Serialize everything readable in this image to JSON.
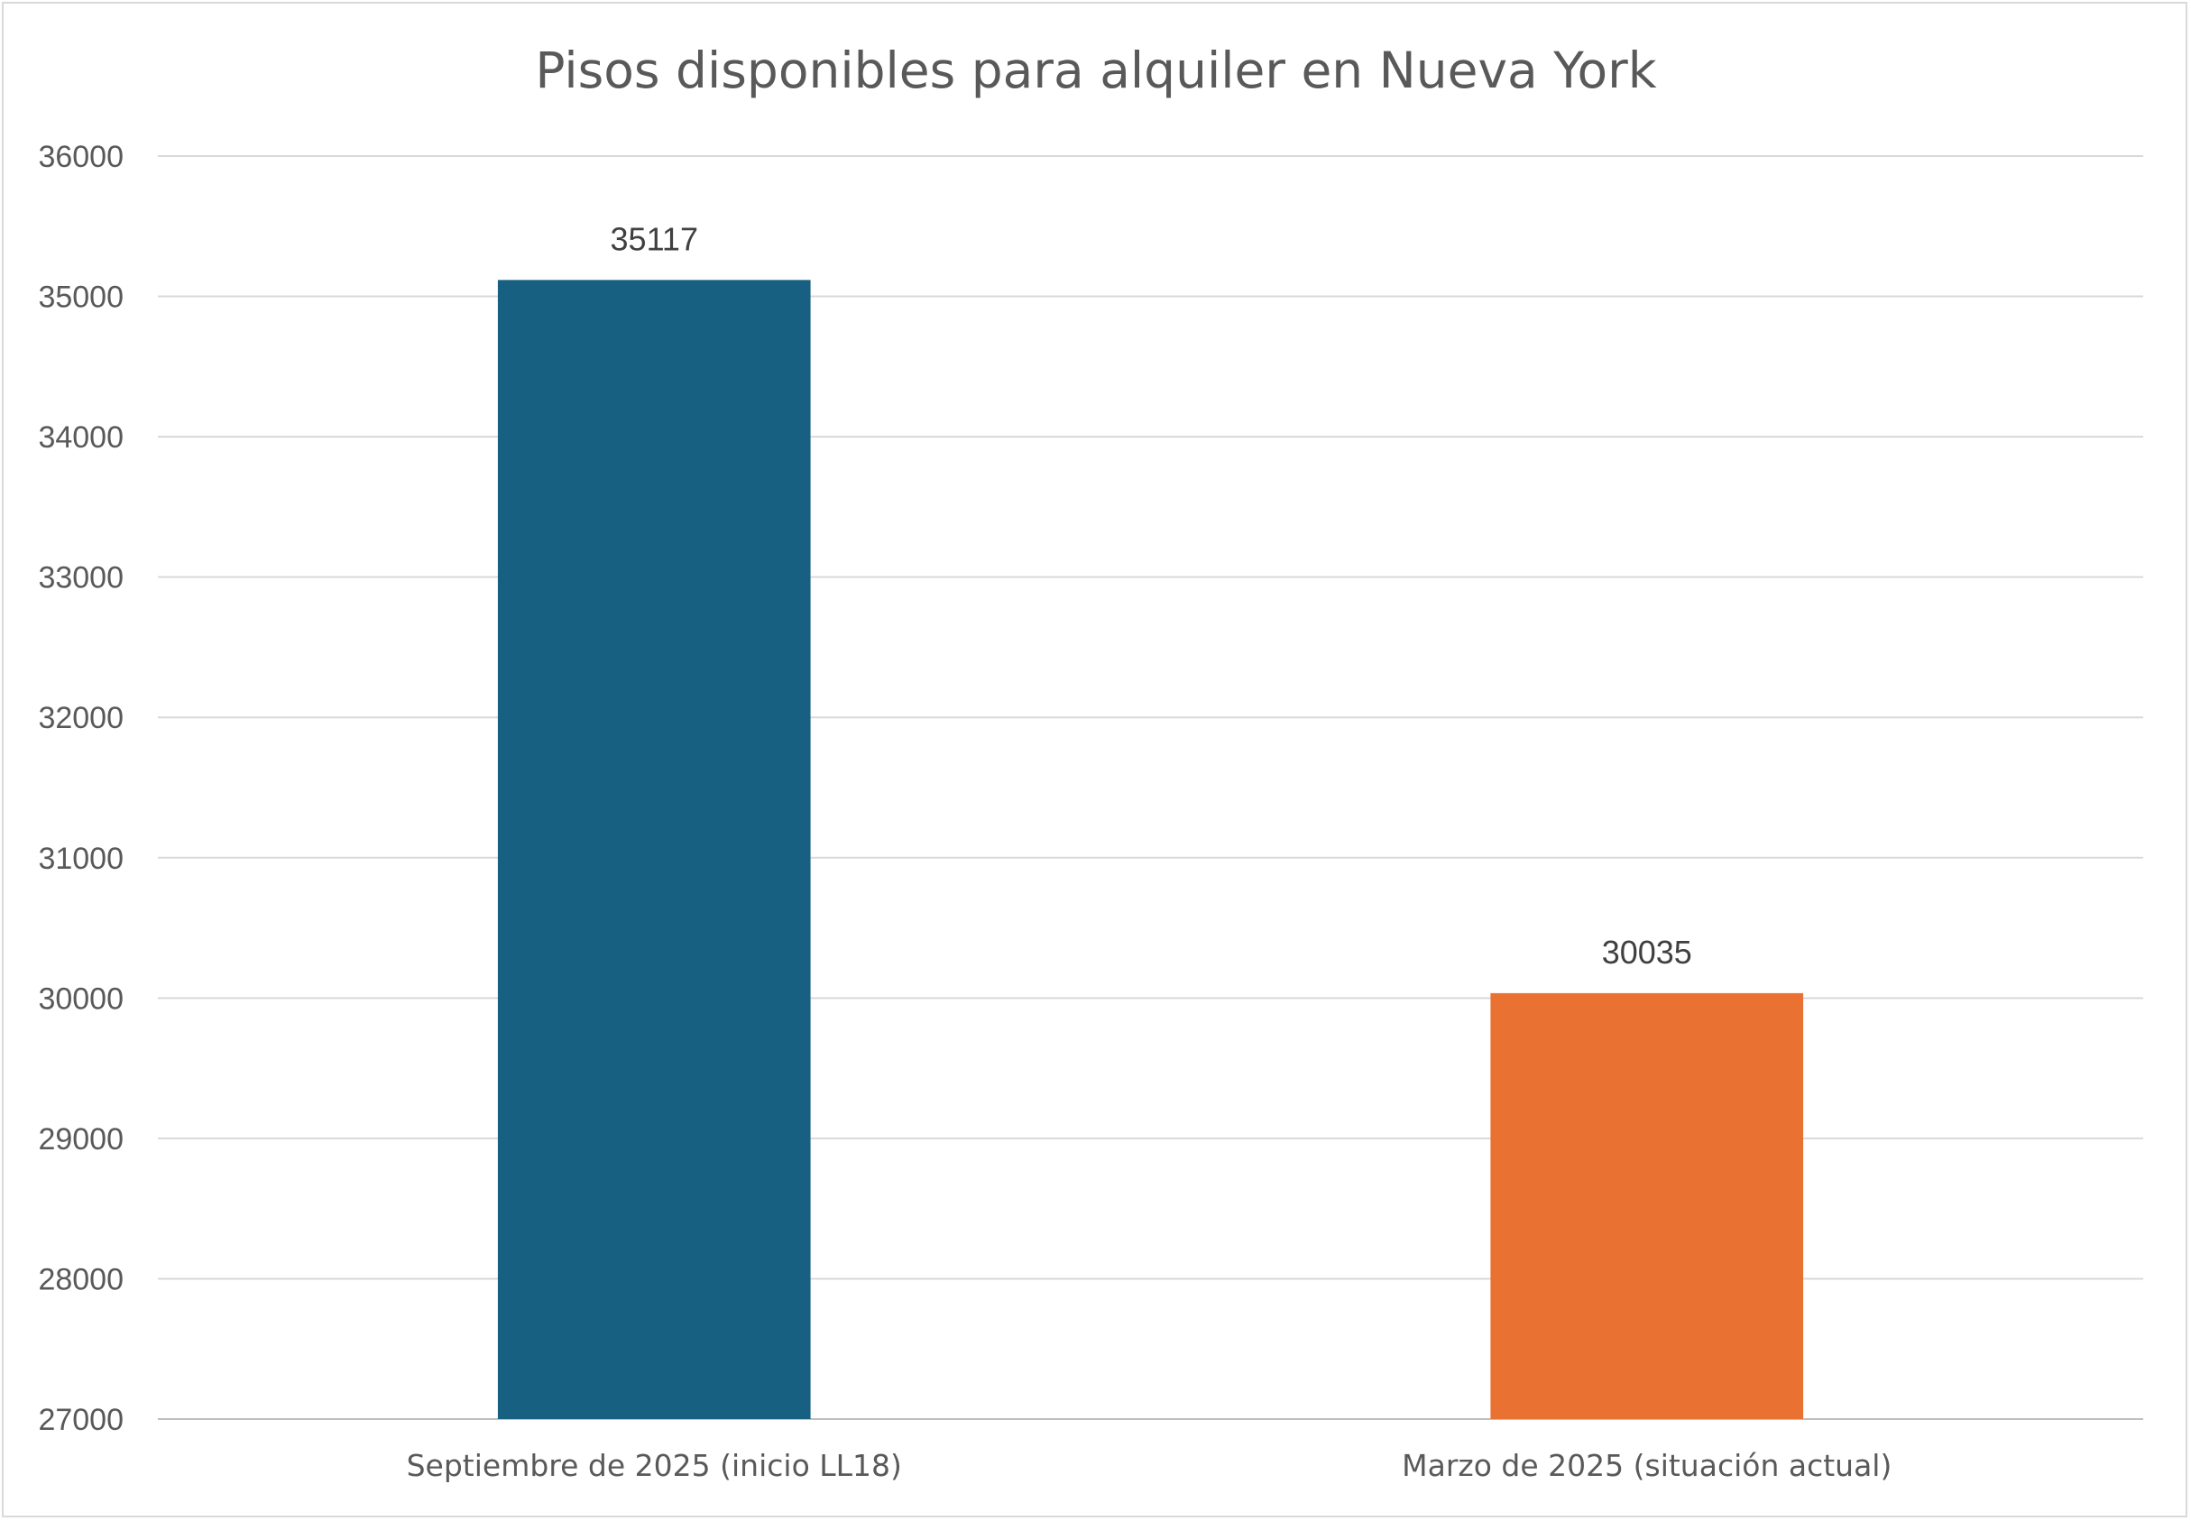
{
  "chart_data": {
    "type": "bar",
    "title": "Pisos disponibles para alquiler en Nueva York",
    "xlabel": "",
    "ylabel": "",
    "categories": [
      "Septiembre de 2025 (inicio LL18)",
      "Marzo de 2025 (situación actual)"
    ],
    "values": [
      35117,
      30035
    ],
    "bar_colors": [
      "#176082",
      "#E97132"
    ],
    "ylim": [
      27000,
      36000
    ],
    "yticks": [
      27000,
      28000,
      29000,
      30000,
      31000,
      32000,
      33000,
      34000,
      35000,
      36000
    ],
    "grid": true,
    "legend": "none",
    "data_labels": true
  }
}
